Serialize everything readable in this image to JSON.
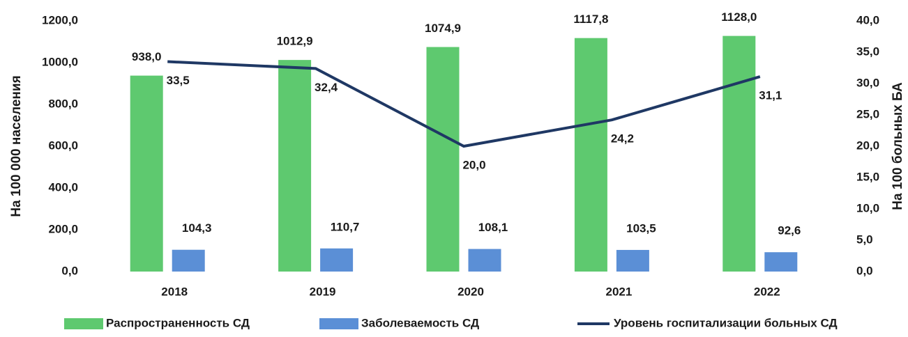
{
  "chart_data": {
    "type": "bar",
    "categories": [
      "2018",
      "2019",
      "2020",
      "2021",
      "2022"
    ],
    "y_label": "На 100 000 населения",
    "y2_label": "На 100 больных БА",
    "ylim": [
      0,
      1200
    ],
    "yticks": [
      {
        "value": 0,
        "label": "0,0"
      },
      {
        "value": 200,
        "label": "200,0"
      },
      {
        "value": 400,
        "label": "400,0"
      },
      {
        "value": 600,
        "label": "600,0"
      },
      {
        "value": 800,
        "label": "800,0"
      },
      {
        "value": 1000,
        "label": "1000,0"
      },
      {
        "value": 1200,
        "label": "1200,0"
      }
    ],
    "y2lim": [
      0,
      40
    ],
    "y2ticks": [
      {
        "value": 0,
        "label": "0,0"
      },
      {
        "value": 5,
        "label": "5,0"
      },
      {
        "value": 10,
        "label": "10,0"
      },
      {
        "value": 15,
        "label": "15,0"
      },
      {
        "value": 20,
        "label": "20,0"
      },
      {
        "value": 25,
        "label": "25,0"
      },
      {
        "value": 30,
        "label": "30,0"
      },
      {
        "value": 35,
        "label": "35,0"
      },
      {
        "value": 40,
        "label": "40,0"
      }
    ],
    "series": [
      {
        "name": "Распространенность СД",
        "type": "bar",
        "color": "#5ec96f",
        "values": [
          938.0,
          1012.9,
          1074.9,
          1117.8,
          1128.0
        ],
        "value_labels": [
          "938,0",
          "1012,9",
          "1074,9",
          "1117,8",
          "1128,0"
        ]
      },
      {
        "name": "Заболеваемость СД",
        "type": "bar",
        "color": "#5b8fd6",
        "values": [
          104.3,
          110.7,
          108.1,
          103.5,
          92.6
        ],
        "value_labels": [
          "104,3",
          "110,7",
          "108,1",
          "103,5",
          "92,6"
        ]
      },
      {
        "name": "Уровень госпитализации больных СД",
        "type": "line",
        "axis": "y2",
        "color": "#1f3864",
        "values": [
          33.5,
          32.4,
          20.0,
          24.2,
          31.1
        ],
        "value_labels": [
          "33,5",
          "32,4",
          "20,0",
          "24,2",
          "31,1"
        ]
      }
    ]
  }
}
